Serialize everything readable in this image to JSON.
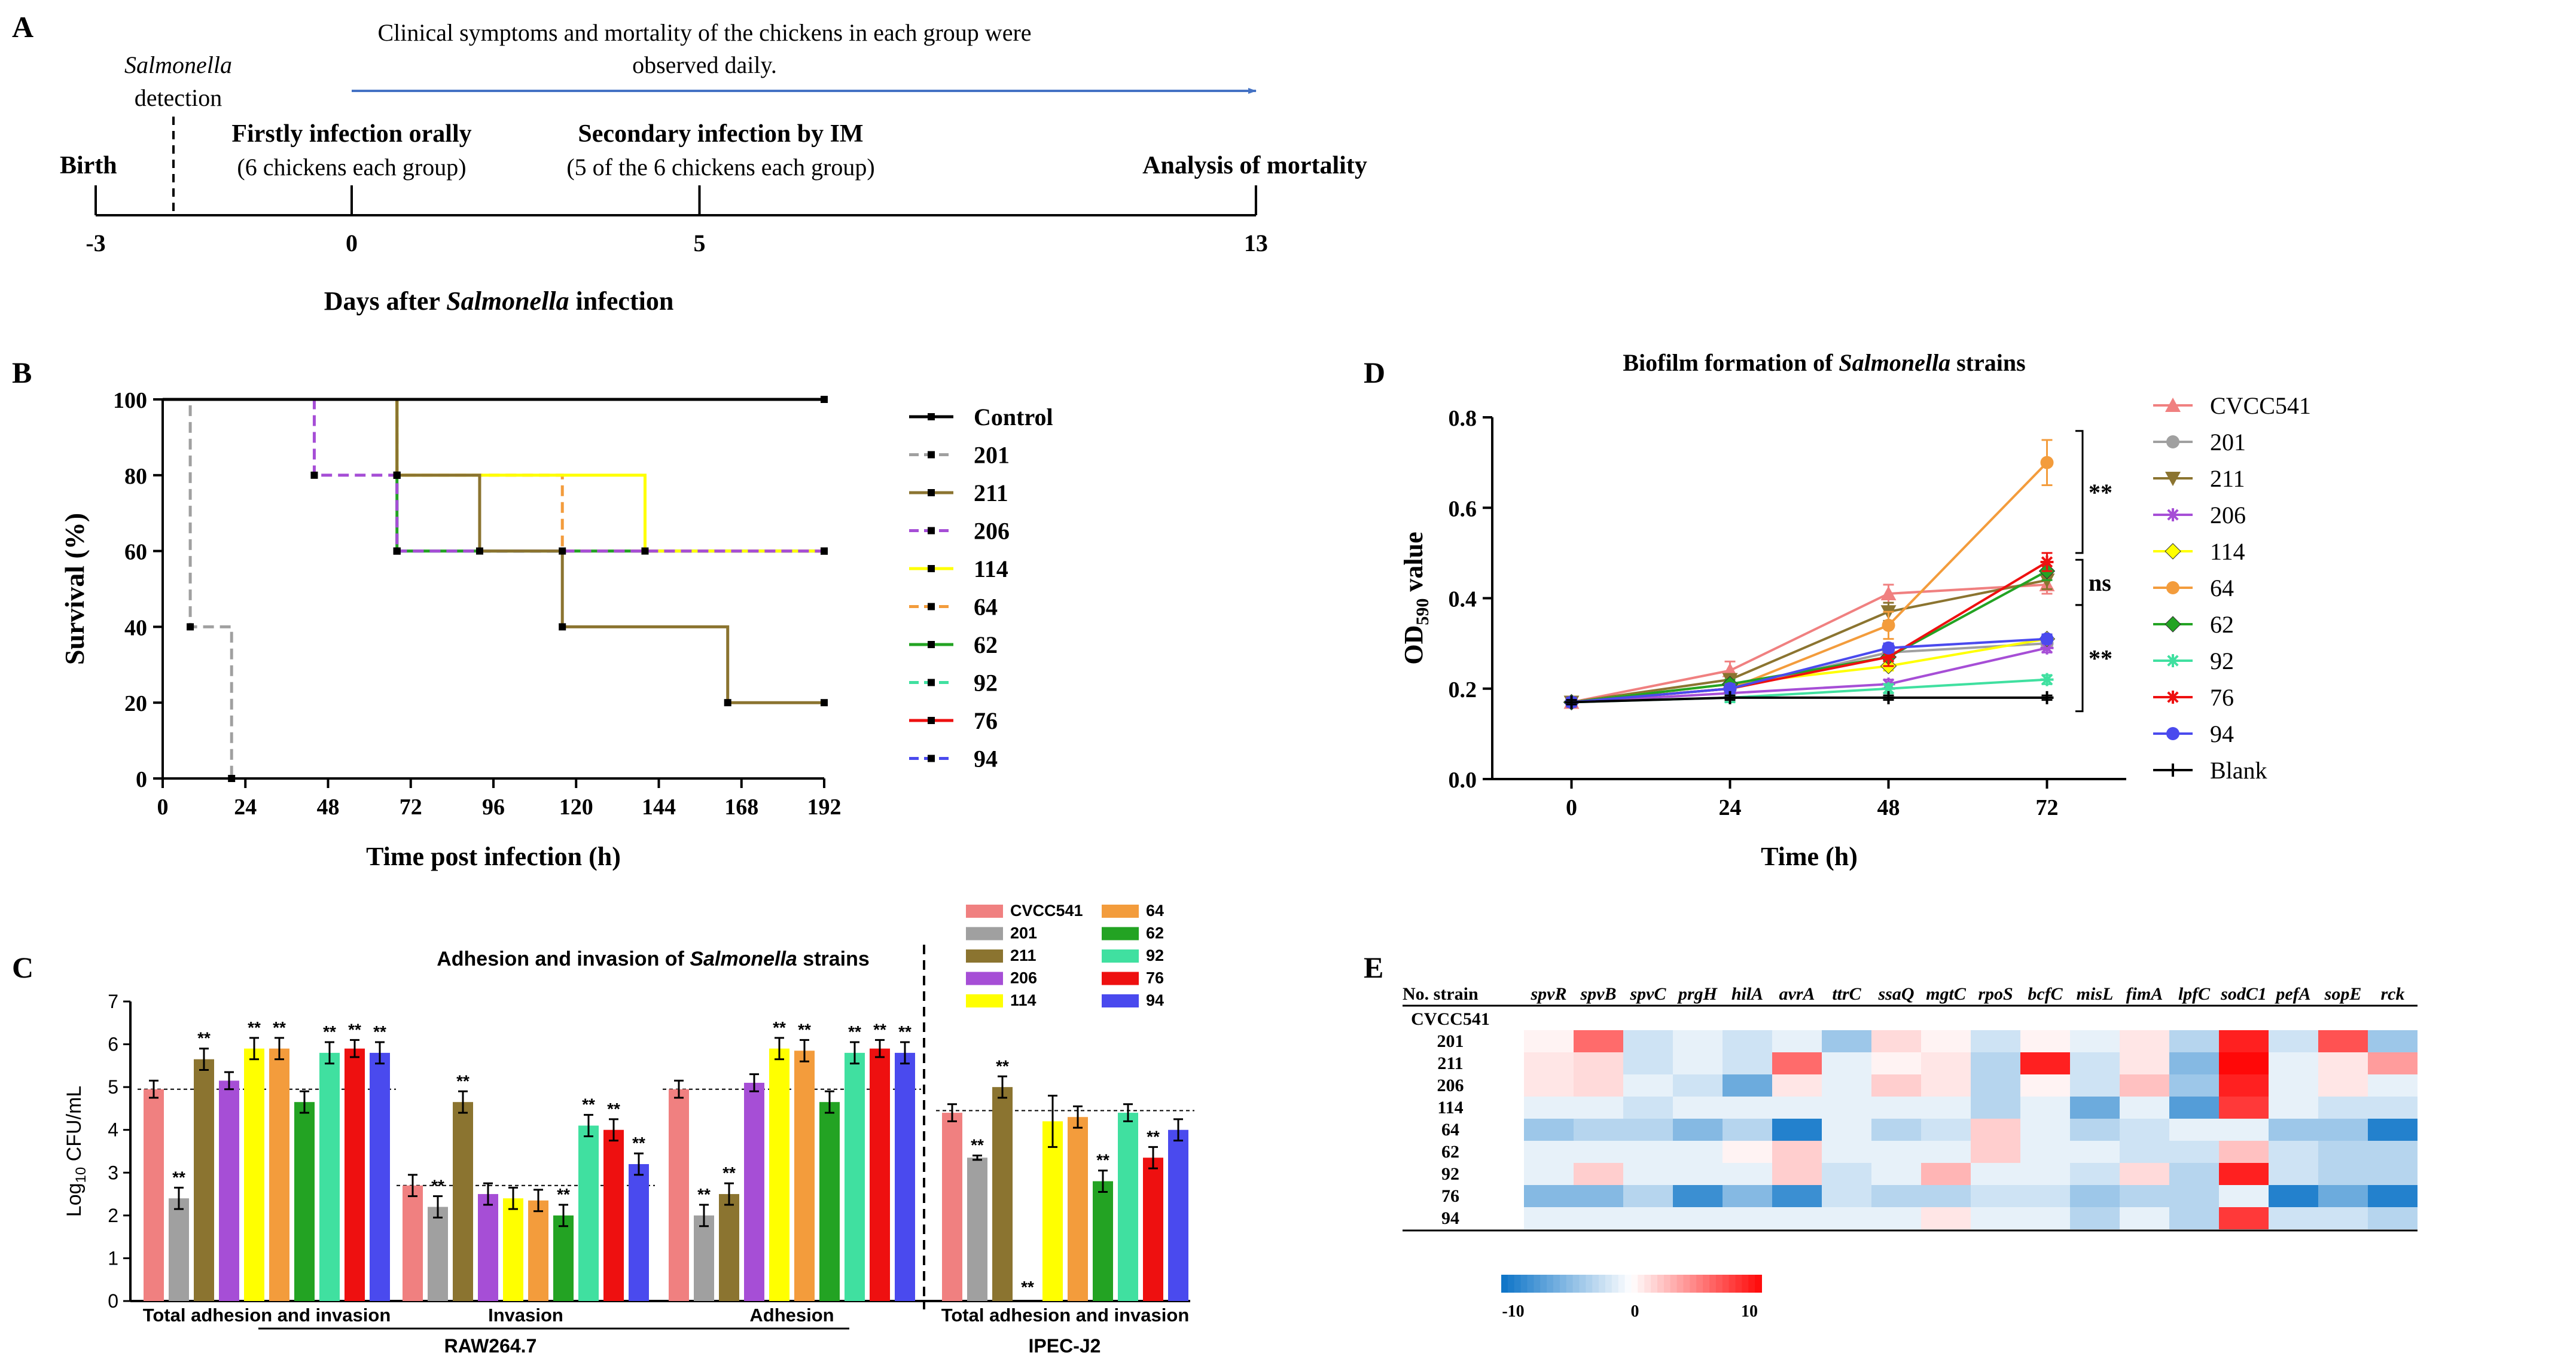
{
  "figure": {
    "panel_labels": {
      "A": "A",
      "B": "B",
      "C": "C",
      "D": "D",
      "E": "E"
    },
    "colors": {
      "CVCC541": "#f08080",
      "201": "#a0a0a0",
      "211": "#8b7430",
      "206": "#a64ed6",
      "114": "#ffff00",
      "64": "#f39c3c",
      "62": "#23a323",
      "92": "#40e0a0",
      "76": "#ee1010",
      "94": "#4a4aee",
      "Control": "#000000",
      "Blank": "#000000",
      "timeline_arrow": "#4472c4"
    }
  },
  "timeline": {
    "days_label_prefix": "Days after ",
    "days_label_italic": "Salmonella",
    "days_label_suffix": " infection",
    "ticks": [
      {
        "day": -3,
        "label": "-3"
      },
      {
        "day": 0,
        "label": "0"
      },
      {
        "day": 5,
        "label": "5"
      },
      {
        "day": 13,
        "label": "13"
      }
    ],
    "events": {
      "birth": "Birth",
      "detection_italic": "Salmonella",
      "detection": "detection",
      "first_title": "Firstly infection orally",
      "first_sub": "(6 chickens each group)",
      "second_title": "Secondary infection by IM",
      "second_sub": "(5 of the 6 chickens each group)",
      "analysis": "Analysis of mortality",
      "clinical_line1": "Clinical symptoms and mortality of the chickens in each group were",
      "clinical_line2": "observed daily."
    }
  },
  "chart_data": [
    {
      "panel": "B",
      "type": "line",
      "xlabel": "Time post infection (h)",
      "ylabel": "Survival (%)",
      "xlim": [
        0,
        192
      ],
      "ylim": [
        0,
        100
      ],
      "xticks": [
        0,
        24,
        48,
        72,
        96,
        120,
        144,
        168,
        192
      ],
      "yticks": [
        0,
        20,
        40,
        60,
        80,
        100
      ],
      "series": [
        {
          "name": "Control",
          "dash": false,
          "points": [
            [
              0,
              100
            ],
            [
              192,
              100
            ]
          ]
        },
        {
          "name": "201",
          "dash": true,
          "points": [
            [
              0,
              100
            ],
            [
              8,
              100
            ],
            [
              8,
              40
            ],
            [
              20,
              40
            ],
            [
              20,
              0
            ]
          ]
        },
        {
          "name": "211",
          "dash": false,
          "points": [
            [
              0,
              100
            ],
            [
              68,
              100
            ],
            [
              68,
              80
            ],
            [
              92,
              80
            ],
            [
              92,
              60
            ],
            [
              116,
              60
            ],
            [
              116,
              40
            ],
            [
              164,
              40
            ],
            [
              164,
              20
            ],
            [
              192,
              20
            ]
          ]
        },
        {
          "name": "206",
          "dash": true,
          "points": [
            [
              0,
              100
            ],
            [
              44,
              100
            ],
            [
              44,
              80
            ],
            [
              68,
              80
            ],
            [
              68,
              60
            ],
            [
              192,
              60
            ]
          ]
        },
        {
          "name": "114",
          "dash": false,
          "points": [
            [
              0,
              100
            ],
            [
              68,
              100
            ],
            [
              68,
              80
            ],
            [
              140,
              80
            ],
            [
              140,
              60
            ],
            [
              192,
              60
            ]
          ]
        },
        {
          "name": "64",
          "dash": true,
          "points": [
            [
              0,
              100
            ],
            [
              68,
              100
            ],
            [
              68,
              80
            ],
            [
              116,
              80
            ],
            [
              116,
              60
            ],
            [
              192,
              60
            ]
          ]
        },
        {
          "name": "62",
          "dash": false,
          "points": [
            [
              0,
              100
            ],
            [
              68,
              100
            ],
            [
              68,
              60
            ],
            [
              192,
              60
            ]
          ]
        },
        {
          "name": "92",
          "dash": true,
          "points": [
            [
              0,
              100
            ],
            [
              68,
              100
            ],
            [
              68,
              60
            ],
            [
              192,
              60
            ]
          ]
        },
        {
          "name": "76",
          "dash": false,
          "points": [
            [
              0,
              100
            ],
            [
              192,
              100
            ]
          ]
        },
        {
          "name": "94",
          "dash": true,
          "points": [
            [
              0,
              100
            ],
            [
              68,
              100
            ],
            [
              68,
              60
            ],
            [
              192,
              60
            ]
          ]
        }
      ]
    },
    {
      "panel": "C",
      "type": "bar",
      "title_prefix": "Adhesion and invasion of ",
      "title_italic": "Salmonella",
      "title_suffix": " strains",
      "ylabel": "Log10 CFU/mL",
      "ylim": [
        0,
        7
      ],
      "yticks": [
        0,
        1,
        2,
        3,
        4,
        5,
        6,
        7
      ],
      "legend": [
        "CVCC541",
        "64",
        "201",
        "62",
        "211",
        "92",
        "206",
        "76",
        "114",
        "94"
      ],
      "series_order": [
        "CVCC541",
        "201",
        "211",
        "206",
        "114",
        "64",
        "62",
        "92",
        "76",
        "94"
      ],
      "groups": [
        {
          "label": "Total adhesion and invasion",
          "baseline": 4.95,
          "values": [
            4.95,
            2.4,
            5.65,
            5.15,
            5.9,
            5.9,
            4.65,
            5.8,
            5.9,
            5.8
          ],
          "errors": [
            0.2,
            0.25,
            0.25,
            0.2,
            0.25,
            0.25,
            0.25,
            0.25,
            0.2,
            0.25
          ],
          "sig": [
            "",
            "**",
            "**",
            "",
            "**",
            "**",
            "",
            "**",
            "**",
            "**"
          ]
        },
        {
          "label": "Invasion",
          "baseline": 2.7,
          "values": [
            2.7,
            2.2,
            4.65,
            2.5,
            2.4,
            2.35,
            2.0,
            4.1,
            4.0,
            3.2
          ],
          "errors": [
            0.25,
            0.25,
            0.25,
            0.25,
            0.25,
            0.25,
            0.25,
            0.25,
            0.25,
            0.25
          ],
          "sig": [
            "",
            "**",
            "**",
            "",
            "",
            "",
            "**",
            "**",
            "**",
            "**"
          ]
        },
        {
          "label": "Adhesion",
          "baseline": 4.95,
          "values": [
            4.95,
            2.0,
            2.5,
            5.1,
            5.9,
            5.85,
            4.65,
            5.8,
            5.9,
            5.8
          ],
          "errors": [
            0.2,
            0.25,
            0.25,
            0.2,
            0.25,
            0.25,
            0.25,
            0.25,
            0.2,
            0.25
          ],
          "sig": [
            "",
            "**",
            "**",
            "",
            "**",
            "**",
            "",
            "**",
            "**",
            "**"
          ]
        },
        {
          "label": "Total adhesion and invasion",
          "baseline": 4.45,
          "values": [
            4.4,
            3.35,
            5.0,
            0,
            4.2,
            4.3,
            2.8,
            4.4,
            3.35,
            4.0
          ],
          "errors": [
            0.2,
            0.05,
            0.25,
            0,
            0.6,
            0.25,
            0.25,
            0.2,
            0.25,
            0.25
          ],
          "sig": [
            "",
            "**",
            "**",
            "**",
            "",
            "",
            "**",
            "",
            "**",
            ""
          ]
        }
      ],
      "cell_lines": [
        "RAW264.7",
        "IPEC-J2"
      ]
    },
    {
      "panel": "D",
      "type": "line",
      "title_prefix": "Biofilm formation of ",
      "title_italic": "Salmonella",
      "title_suffix": " strains",
      "xlabel": "Time (h)",
      "ylabel_pre": "OD",
      "ylabel_sub": "590",
      "ylabel_post": " value",
      "xlim": [
        -12,
        84
      ],
      "ylim": [
        0,
        0.8
      ],
      "x": [
        0,
        24,
        48,
        72
      ],
      "xticks": [
        0,
        24,
        48,
        72
      ],
      "yticks": [
        0.0,
        0.2,
        0.4,
        0.6,
        0.8
      ],
      "ytick_labels": [
        "0.0",
        "0.2",
        "0.4",
        "0.6",
        "0.8"
      ],
      "series": [
        {
          "name": "CVCC541",
          "marker": "tri-up",
          "values": [
            0.17,
            0.24,
            0.41,
            0.43
          ],
          "errors": [
            0.01,
            0.02,
            0.02,
            0.02
          ]
        },
        {
          "name": "201",
          "marker": "circle",
          "values": [
            0.17,
            0.2,
            0.28,
            0.3
          ],
          "errors": [
            0.01,
            0.01,
            0.02,
            0.01
          ]
        },
        {
          "name": "211",
          "marker": "tri-down",
          "values": [
            0.17,
            0.22,
            0.37,
            0.44
          ],
          "errors": [
            0.01,
            0.01,
            0.02,
            0.02
          ]
        },
        {
          "name": "206",
          "marker": "star",
          "values": [
            0.17,
            0.19,
            0.21,
            0.29
          ],
          "errors": [
            0.01,
            0.01,
            0.01,
            0.01
          ]
        },
        {
          "name": "114",
          "marker": "diamond",
          "values": [
            0.17,
            0.21,
            0.25,
            0.31
          ],
          "errors": [
            0.01,
            0.01,
            0.01,
            0.01
          ]
        },
        {
          "name": "64",
          "marker": "circle",
          "values": [
            0.17,
            0.2,
            0.34,
            0.7
          ],
          "errors": [
            0.01,
            0.01,
            0.03,
            0.05
          ]
        },
        {
          "name": "62",
          "marker": "diamond",
          "values": [
            0.17,
            0.21,
            0.27,
            0.46
          ],
          "errors": [
            0.01,
            0.01,
            0.02,
            0.02
          ]
        },
        {
          "name": "92",
          "marker": "star",
          "values": [
            0.17,
            0.18,
            0.2,
            0.22
          ],
          "errors": [
            0.01,
            0.01,
            0.01,
            0.01
          ]
        },
        {
          "name": "76",
          "marker": "star",
          "values": [
            0.17,
            0.2,
            0.27,
            0.48
          ],
          "errors": [
            0.01,
            0.01,
            0.02,
            0.02
          ]
        },
        {
          "name": "94",
          "marker": "circle",
          "values": [
            0.17,
            0.2,
            0.29,
            0.31
          ],
          "errors": [
            0.01,
            0.01,
            0.01,
            0.01
          ]
        },
        {
          "name": "Blank",
          "marker": "plus",
          "values": [
            0.17,
            0.18,
            0.18,
            0.18
          ],
          "errors": [
            0.005,
            0.005,
            0.005,
            0.005
          ]
        }
      ],
      "annotations": [
        "**",
        "ns",
        "**"
      ]
    },
    {
      "panel": "E",
      "type": "heatmap",
      "corner_label": "No. strain",
      "columns": [
        "spvR",
        "spvB",
        "spvC",
        "prgH",
        "hilA",
        "avrA",
        "ttrC",
        "ssaQ",
        "mgtC",
        "rpoS",
        "bcfC",
        "misL",
        "fimA",
        "lpfC",
        "sodC1",
        "pefA",
        "sopE",
        "rck"
      ],
      "rows": [
        "CVCC541",
        "201",
        "211",
        "206",
        "114",
        "64",
        "62",
        "92",
        "76",
        "94"
      ],
      "values": [
        [
          0,
          0,
          0,
          0,
          0,
          0,
          0,
          0,
          0,
          0,
          0,
          0,
          0,
          0,
          0,
          0,
          0,
          0
        ],
        [
          0.5,
          6,
          -2,
          -1,
          -2,
          -1,
          -4,
          1.5,
          0.5,
          -2,
          0.5,
          -1,
          1,
          -3,
          9,
          -2,
          7,
          -4
        ],
        [
          1,
          1.5,
          -2,
          -1,
          -2,
          6,
          -1,
          0.5,
          1,
          -3,
          9,
          -2,
          1,
          -5,
          10,
          -1,
          1,
          4
        ],
        [
          1,
          1.5,
          -1,
          -2,
          -6,
          1,
          -1,
          2,
          1,
          -3,
          0.5,
          -2,
          2.5,
          -4,
          9,
          -1,
          1,
          -1
        ],
        [
          -1,
          -1,
          -2,
          -1,
          -1,
          -1,
          -1,
          -1,
          -1,
          -3,
          -1,
          -6,
          -1,
          -7,
          8,
          -1,
          -2,
          -2
        ],
        [
          -4,
          -3,
          -3,
          -5,
          -3,
          -9,
          -1,
          -3,
          -2,
          2,
          -1,
          -3,
          -2,
          -1,
          -1,
          -4,
          -4,
          -9
        ],
        [
          -1,
          -1,
          -1,
          -1,
          0.5,
          2,
          -1,
          -1,
          -1,
          2,
          -1,
          -1,
          -2,
          -2,
          2.5,
          -2,
          -3,
          -3
        ],
        [
          -1,
          2,
          -1,
          -1,
          -1,
          2,
          -2,
          -1,
          3,
          -1,
          -1,
          -2,
          1.5,
          -3,
          9,
          -2,
          -3,
          -3
        ],
        [
          -5,
          -5,
          -3,
          -8,
          -5,
          -8,
          -2,
          -3,
          -3,
          -2,
          -2,
          -4,
          -3,
          -3,
          -1,
          -9,
          -6,
          -9
        ],
        [
          -1,
          -1,
          -1,
          -1,
          -1,
          -1,
          -1,
          -1,
          1,
          -1,
          -1,
          -3,
          -1,
          -3,
          8,
          -2,
          -2,
          -3
        ]
      ],
      "scale_min": -10,
      "scale_max": 10,
      "scale_labels": [
        "-10",
        "0",
        "10"
      ]
    }
  ]
}
